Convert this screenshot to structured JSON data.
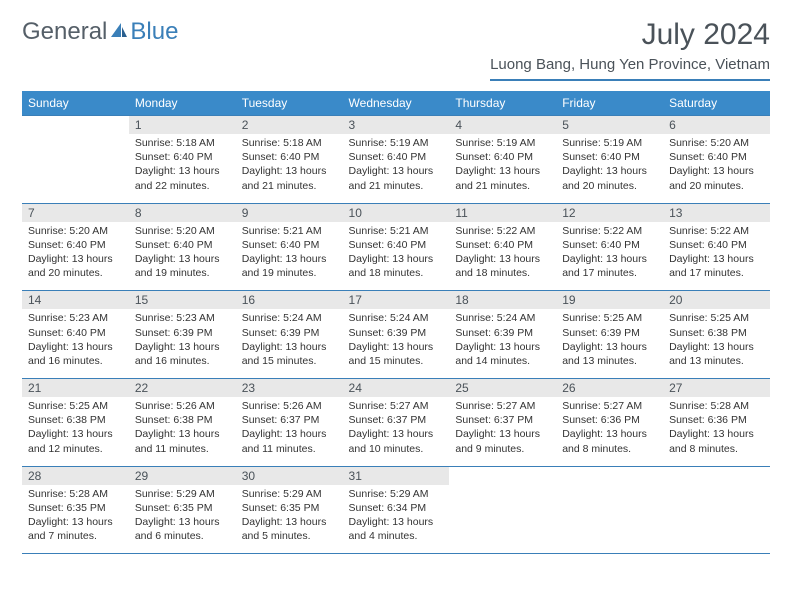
{
  "logo": {
    "text1": "General",
    "text2": "Blue"
  },
  "colors": {
    "accent": "#3a8ac9",
    "rule": "#3a7fb8",
    "header_text": "#4a5259",
    "daynum_bg": "#e8e8e8"
  },
  "title": "July 2024",
  "location": "Luong Bang, Hung Yen Province, Vietnam",
  "weekdays": [
    "Sunday",
    "Monday",
    "Tuesday",
    "Wednesday",
    "Thursday",
    "Friday",
    "Saturday"
  ],
  "weeks": [
    [
      null,
      {
        "n": "1",
        "sr": "5:18 AM",
        "ss": "6:40 PM",
        "dl": "13 hours and 22 minutes."
      },
      {
        "n": "2",
        "sr": "5:18 AM",
        "ss": "6:40 PM",
        "dl": "13 hours and 21 minutes."
      },
      {
        "n": "3",
        "sr": "5:19 AM",
        "ss": "6:40 PM",
        "dl": "13 hours and 21 minutes."
      },
      {
        "n": "4",
        "sr": "5:19 AM",
        "ss": "6:40 PM",
        "dl": "13 hours and 21 minutes."
      },
      {
        "n": "5",
        "sr": "5:19 AM",
        "ss": "6:40 PM",
        "dl": "13 hours and 20 minutes."
      },
      {
        "n": "6",
        "sr": "5:20 AM",
        "ss": "6:40 PM",
        "dl": "13 hours and 20 minutes."
      }
    ],
    [
      {
        "n": "7",
        "sr": "5:20 AM",
        "ss": "6:40 PM",
        "dl": "13 hours and 20 minutes."
      },
      {
        "n": "8",
        "sr": "5:20 AM",
        "ss": "6:40 PM",
        "dl": "13 hours and 19 minutes."
      },
      {
        "n": "9",
        "sr": "5:21 AM",
        "ss": "6:40 PM",
        "dl": "13 hours and 19 minutes."
      },
      {
        "n": "10",
        "sr": "5:21 AM",
        "ss": "6:40 PM",
        "dl": "13 hours and 18 minutes."
      },
      {
        "n": "11",
        "sr": "5:22 AM",
        "ss": "6:40 PM",
        "dl": "13 hours and 18 minutes."
      },
      {
        "n": "12",
        "sr": "5:22 AM",
        "ss": "6:40 PM",
        "dl": "13 hours and 17 minutes."
      },
      {
        "n": "13",
        "sr": "5:22 AM",
        "ss": "6:40 PM",
        "dl": "13 hours and 17 minutes."
      }
    ],
    [
      {
        "n": "14",
        "sr": "5:23 AM",
        "ss": "6:40 PM",
        "dl": "13 hours and 16 minutes."
      },
      {
        "n": "15",
        "sr": "5:23 AM",
        "ss": "6:39 PM",
        "dl": "13 hours and 16 minutes."
      },
      {
        "n": "16",
        "sr": "5:24 AM",
        "ss": "6:39 PM",
        "dl": "13 hours and 15 minutes."
      },
      {
        "n": "17",
        "sr": "5:24 AM",
        "ss": "6:39 PM",
        "dl": "13 hours and 15 minutes."
      },
      {
        "n": "18",
        "sr": "5:24 AM",
        "ss": "6:39 PM",
        "dl": "13 hours and 14 minutes."
      },
      {
        "n": "19",
        "sr": "5:25 AM",
        "ss": "6:39 PM",
        "dl": "13 hours and 13 minutes."
      },
      {
        "n": "20",
        "sr": "5:25 AM",
        "ss": "6:38 PM",
        "dl": "13 hours and 13 minutes."
      }
    ],
    [
      {
        "n": "21",
        "sr": "5:25 AM",
        "ss": "6:38 PM",
        "dl": "13 hours and 12 minutes."
      },
      {
        "n": "22",
        "sr": "5:26 AM",
        "ss": "6:38 PM",
        "dl": "13 hours and 11 minutes."
      },
      {
        "n": "23",
        "sr": "5:26 AM",
        "ss": "6:37 PM",
        "dl": "13 hours and 11 minutes."
      },
      {
        "n": "24",
        "sr": "5:27 AM",
        "ss": "6:37 PM",
        "dl": "13 hours and 10 minutes."
      },
      {
        "n": "25",
        "sr": "5:27 AM",
        "ss": "6:37 PM",
        "dl": "13 hours and 9 minutes."
      },
      {
        "n": "26",
        "sr": "5:27 AM",
        "ss": "6:36 PM",
        "dl": "13 hours and 8 minutes."
      },
      {
        "n": "27",
        "sr": "5:28 AM",
        "ss": "6:36 PM",
        "dl": "13 hours and 8 minutes."
      }
    ],
    [
      {
        "n": "28",
        "sr": "5:28 AM",
        "ss": "6:35 PM",
        "dl": "13 hours and 7 minutes."
      },
      {
        "n": "29",
        "sr": "5:29 AM",
        "ss": "6:35 PM",
        "dl": "13 hours and 6 minutes."
      },
      {
        "n": "30",
        "sr": "5:29 AM",
        "ss": "6:35 PM",
        "dl": "13 hours and 5 minutes."
      },
      {
        "n": "31",
        "sr": "5:29 AM",
        "ss": "6:34 PM",
        "dl": "13 hours and 4 minutes."
      },
      null,
      null,
      null
    ]
  ],
  "labels": {
    "sunrise": "Sunrise: ",
    "sunset": "Sunset: ",
    "daylight": "Daylight: "
  }
}
